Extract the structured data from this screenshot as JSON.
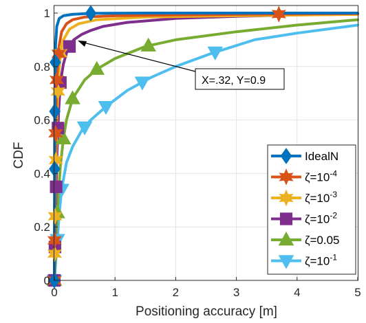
{
  "chart_data": {
    "type": "line",
    "xlabel": "Positioning accuracy [m]",
    "ylabel": "CDF",
    "xlim": [
      0,
      5
    ],
    "ylim": [
      0,
      1
    ],
    "x_ticks": [
      "0",
      "1",
      "2",
      "3",
      "4",
      "5"
    ],
    "y_ticks": [
      "0",
      "0.2",
      "0.4",
      "0.6",
      "0.8",
      "1"
    ],
    "grid": true,
    "legend_position": "bottom-right",
    "annotation": {
      "text": "X=.32, Y=0.9",
      "point": [
        0.32,
        0.9
      ]
    },
    "series": [
      {
        "name": "IdealN",
        "name_main": "IdealN",
        "name_sup": "",
        "color": "#0072BD",
        "marker": "diamond",
        "x": [
          0,
          0.002,
          0.005,
          0.01,
          0.02,
          0.04,
          0.08,
          0.15,
          0.3,
          0.6,
          1.5,
          5
        ],
        "y": [
          0,
          0.25,
          0.5,
          0.72,
          0.88,
          0.95,
          0.98,
          0.99,
          0.995,
          0.999,
          1.0,
          1.0
        ],
        "markers_x": [
          0,
          0.004,
          0.008,
          0.016,
          0.6
        ]
      },
      {
        "name": "ζ=10^-4",
        "name_main": "ζ=10",
        "name_sup": "-4",
        "color": "#D95319",
        "marker": "hexagram",
        "x": [
          0,
          0.01,
          0.02,
          0.04,
          0.08,
          0.12,
          0.2,
          0.3,
          0.5,
          1,
          2,
          3,
          5
        ],
        "y": [
          0,
          0.3,
          0.55,
          0.75,
          0.88,
          0.93,
          0.96,
          0.975,
          0.985,
          0.99,
          0.993,
          0.995,
          0.998
        ],
        "markers_x": [
          0,
          0.005,
          0.02,
          0.04,
          0.07,
          3.7
        ]
      },
      {
        "name": "ζ=10^-3",
        "name_main": "ζ=10",
        "name_sup": "-3",
        "color": "#EDB120",
        "marker": "hexagram",
        "x": [
          0,
          0.01,
          0.02,
          0.04,
          0.07,
          0.1,
          0.15,
          0.25,
          0.4,
          0.7,
          1.5,
          3,
          5
        ],
        "y": [
          0,
          0.2,
          0.4,
          0.6,
          0.76,
          0.85,
          0.9,
          0.94,
          0.96,
          0.975,
          0.985,
          0.99,
          0.995
        ],
        "markers_x": [
          0,
          0.005,
          0.012,
          0.025,
          0.06,
          0.1
        ]
      },
      {
        "name": "ζ=10^-2",
        "name_main": "ζ=10",
        "name_sup": "-2",
        "color": "#7E2F8E",
        "marker": "square",
        "x": [
          0,
          0.02,
          0.04,
          0.07,
          0.1,
          0.15,
          0.2,
          0.25,
          0.32,
          0.45,
          0.6,
          0.8,
          1.2,
          2,
          3,
          4,
          5
        ],
        "y": [
          0,
          0.25,
          0.45,
          0.63,
          0.74,
          0.81,
          0.85,
          0.875,
          0.9,
          0.92,
          0.935,
          0.95,
          0.965,
          0.98,
          0.988,
          0.993,
          0.996
        ],
        "markers_x": [
          0,
          0.01,
          0.03,
          0.06,
          0.1,
          0.25
        ]
      },
      {
        "name": "ζ=0.05",
        "name_main": "ζ=0.05",
        "name_sup": "",
        "color": "#77AC30",
        "marker": "triangle-up",
        "x": [
          0,
          0.03,
          0.06,
          0.1,
          0.15,
          0.2,
          0.3,
          0.5,
          0.7,
          1,
          1.5,
          2,
          3,
          4,
          5
        ],
        "y": [
          0,
          0.16,
          0.3,
          0.43,
          0.53,
          0.6,
          0.68,
          0.75,
          0.79,
          0.83,
          0.875,
          0.9,
          0.93,
          0.955,
          0.975
        ],
        "markers_x": [
          0,
          0.05,
          0.15,
          0.3,
          0.7,
          1.55
        ]
      },
      {
        "name": "ζ=10^-1",
        "name_main": "ζ=10",
        "name_sup": "-1",
        "color": "#4DBEEE",
        "marker": "triangle-down",
        "x": [
          0,
          0.04,
          0.08,
          0.12,
          0.2,
          0.3,
          0.45,
          0.6,
          0.85,
          1.2,
          1.6,
          2,
          2.6,
          3.3,
          4,
          5
        ],
        "y": [
          0,
          0.12,
          0.25,
          0.34,
          0.44,
          0.5,
          0.56,
          0.6,
          0.65,
          0.71,
          0.76,
          0.8,
          0.85,
          0.9,
          0.925,
          0.955
        ],
        "markers_x": [
          0,
          0.05,
          0.12,
          0.5,
          0.85,
          1.45,
          2.65
        ]
      }
    ]
  }
}
